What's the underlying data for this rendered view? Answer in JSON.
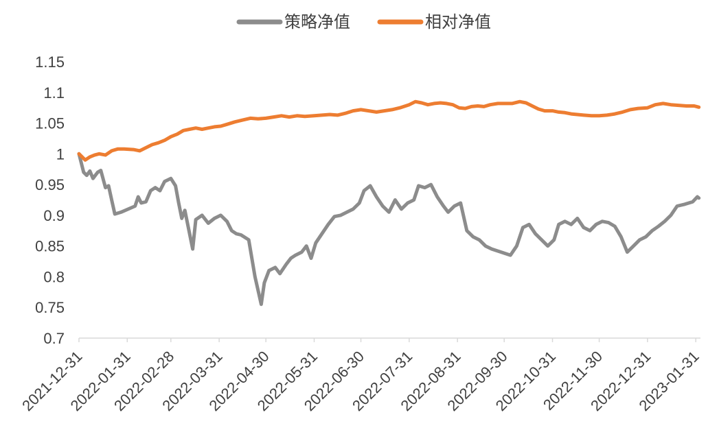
{
  "chart_data": {
    "type": "line",
    "title": "",
    "xlabel": "",
    "ylabel": "",
    "ylim": [
      0.7,
      1.15
    ],
    "yticks": [
      "1.15",
      "1.1",
      "1.05",
      "1",
      "0.95",
      "0.9",
      "0.85",
      "0.8",
      "0.75",
      "0.7"
    ],
    "xticks": [
      "2021-12-31",
      "2022-01-31",
      "2022-02-28",
      "2022-03-31",
      "2022-04-30",
      "2022-05-31",
      "2022-06-30",
      "2022-07-31",
      "2022-08-31",
      "2022-09-30",
      "2022-10-31",
      "2022-11-30",
      "2022-12-31",
      "2023-01-31"
    ],
    "legend_position": "top-center",
    "grid": false,
    "series": [
      {
        "name": "策略净值",
        "color": "#8c8c8c",
        "points": [
          [
            "2021-12-31",
            1.0
          ],
          [
            "2022-01-03",
            0.97
          ],
          [
            "2022-01-05",
            0.965
          ],
          [
            "2022-01-07",
            0.972
          ],
          [
            "2022-01-09",
            0.96
          ],
          [
            "2022-01-12",
            0.97
          ],
          [
            "2022-01-14",
            0.973
          ],
          [
            "2022-01-17",
            0.945
          ],
          [
            "2022-01-19",
            0.948
          ],
          [
            "2022-01-21",
            0.925
          ],
          [
            "2022-01-23",
            0.902
          ],
          [
            "2022-01-27",
            0.905
          ],
          [
            "2022-02-05",
            0.915
          ],
          [
            "2022-02-07",
            0.93
          ],
          [
            "2022-02-09",
            0.92
          ],
          [
            "2022-02-12",
            0.922
          ],
          [
            "2022-02-15",
            0.94
          ],
          [
            "2022-02-18",
            0.945
          ],
          [
            "2022-02-21",
            0.94
          ],
          [
            "2022-02-24",
            0.955
          ],
          [
            "2022-02-28",
            0.96
          ],
          [
            "2022-03-03",
            0.948
          ],
          [
            "2022-03-05",
            0.92
          ],
          [
            "2022-03-07",
            0.895
          ],
          [
            "2022-03-09",
            0.908
          ],
          [
            "2022-03-14",
            0.845
          ],
          [
            "2022-03-16",
            0.893
          ],
          [
            "2022-03-20",
            0.9
          ],
          [
            "2022-03-24",
            0.887
          ],
          [
            "2022-03-28",
            0.895
          ],
          [
            "2022-04-01",
            0.9
          ],
          [
            "2022-04-05",
            0.89
          ],
          [
            "2022-04-08",
            0.875
          ],
          [
            "2022-04-11",
            0.87
          ],
          [
            "2022-04-14",
            0.868
          ],
          [
            "2022-04-19",
            0.86
          ],
          [
            "2022-04-23",
            0.8
          ],
          [
            "2022-04-27",
            0.755
          ],
          [
            "2022-04-29",
            0.79
          ],
          [
            "2022-05-02",
            0.81
          ],
          [
            "2022-05-06",
            0.815
          ],
          [
            "2022-05-09",
            0.805
          ],
          [
            "2022-05-13",
            0.82
          ],
          [
            "2022-05-16",
            0.83
          ],
          [
            "2022-05-19",
            0.835
          ],
          [
            "2022-05-23",
            0.84
          ],
          [
            "2022-05-26",
            0.85
          ],
          [
            "2022-05-29",
            0.83
          ],
          [
            "2022-06-01",
            0.855
          ],
          [
            "2022-06-05",
            0.87
          ],
          [
            "2022-06-09",
            0.885
          ],
          [
            "2022-06-13",
            0.898
          ],
          [
            "2022-06-17",
            0.9
          ],
          [
            "2022-06-21",
            0.905
          ],
          [
            "2022-06-25",
            0.91
          ],
          [
            "2022-06-29",
            0.92
          ],
          [
            "2022-07-02",
            0.94
          ],
          [
            "2022-07-06",
            0.948
          ],
          [
            "2022-07-10",
            0.93
          ],
          [
            "2022-07-14",
            0.915
          ],
          [
            "2022-07-18",
            0.905
          ],
          [
            "2022-07-22",
            0.925
          ],
          [
            "2022-07-26",
            0.91
          ],
          [
            "2022-07-30",
            0.92
          ],
          [
            "2022-08-03",
            0.925
          ],
          [
            "2022-08-06",
            0.948
          ],
          [
            "2022-08-10",
            0.945
          ],
          [
            "2022-08-14",
            0.95
          ],
          [
            "2022-08-18",
            0.93
          ],
          [
            "2022-08-22",
            0.915
          ],
          [
            "2022-08-25",
            0.905
          ],
          [
            "2022-08-29",
            0.915
          ],
          [
            "2022-09-02",
            0.92
          ],
          [
            "2022-09-06",
            0.875
          ],
          [
            "2022-09-10",
            0.865
          ],
          [
            "2022-09-14",
            0.86
          ],
          [
            "2022-09-18",
            0.85
          ],
          [
            "2022-09-22",
            0.845
          ],
          [
            "2022-09-28",
            0.84
          ],
          [
            "2022-10-04",
            0.835
          ],
          [
            "2022-10-08",
            0.85
          ],
          [
            "2022-10-12",
            0.88
          ],
          [
            "2022-10-16",
            0.885
          ],
          [
            "2022-10-20",
            0.87
          ],
          [
            "2022-10-24",
            0.86
          ],
          [
            "2022-10-28",
            0.85
          ],
          [
            "2022-11-01",
            0.86
          ],
          [
            "2022-11-04",
            0.885
          ],
          [
            "2022-11-08",
            0.89
          ],
          [
            "2022-11-12",
            0.885
          ],
          [
            "2022-11-16",
            0.895
          ],
          [
            "2022-11-20",
            0.88
          ],
          [
            "2022-11-24",
            0.875
          ],
          [
            "2022-11-28",
            0.885
          ],
          [
            "2022-12-02",
            0.89
          ],
          [
            "2022-12-06",
            0.888
          ],
          [
            "2022-12-10",
            0.882
          ],
          [
            "2022-12-14",
            0.865
          ],
          [
            "2022-12-18",
            0.84
          ],
          [
            "2022-12-22",
            0.85
          ],
          [
            "2022-12-26",
            0.86
          ],
          [
            "2022-12-30",
            0.865
          ],
          [
            "2023-01-03",
            0.875
          ],
          [
            "2023-01-07",
            0.882
          ],
          [
            "2023-01-11",
            0.89
          ],
          [
            "2023-01-15",
            0.9
          ],
          [
            "2023-01-19",
            0.915
          ],
          [
            "2023-01-24",
            0.918
          ],
          [
            "2023-01-29",
            0.922
          ],
          [
            "2023-02-01",
            0.93
          ],
          [
            "2023-02-02",
            0.928
          ]
        ]
      },
      {
        "name": "相对净值",
        "color": "#ed7d31",
        "points": [
          [
            "2021-12-31",
            1.0
          ],
          [
            "2022-01-04",
            0.99
          ],
          [
            "2022-01-07",
            0.995
          ],
          [
            "2022-01-10",
            0.998
          ],
          [
            "2022-01-13",
            1.0
          ],
          [
            "2022-01-17",
            0.998
          ],
          [
            "2022-01-21",
            1.005
          ],
          [
            "2022-01-25",
            1.008
          ],
          [
            "2022-01-29",
            1.008
          ],
          [
            "2022-02-04",
            1.007
          ],
          [
            "2022-02-08",
            1.005
          ],
          [
            "2022-02-12",
            1.01
          ],
          [
            "2022-02-16",
            1.015
          ],
          [
            "2022-02-20",
            1.018
          ],
          [
            "2022-02-24",
            1.022
          ],
          [
            "2022-02-28",
            1.028
          ],
          [
            "2022-03-04",
            1.032
          ],
          [
            "2022-03-08",
            1.038
          ],
          [
            "2022-03-12",
            1.04
          ],
          [
            "2022-03-16",
            1.042
          ],
          [
            "2022-03-20",
            1.04
          ],
          [
            "2022-03-24",
            1.042
          ],
          [
            "2022-03-28",
            1.044
          ],
          [
            "2022-04-01",
            1.045
          ],
          [
            "2022-04-05",
            1.048
          ],
          [
            "2022-04-10",
            1.052
          ],
          [
            "2022-04-15",
            1.055
          ],
          [
            "2022-04-20",
            1.058
          ],
          [
            "2022-04-25",
            1.057
          ],
          [
            "2022-04-30",
            1.058
          ],
          [
            "2022-05-05",
            1.06
          ],
          [
            "2022-05-10",
            1.062
          ],
          [
            "2022-05-15",
            1.06
          ],
          [
            "2022-05-20",
            1.062
          ],
          [
            "2022-05-25",
            1.061
          ],
          [
            "2022-05-31",
            1.062
          ],
          [
            "2022-06-05",
            1.063
          ],
          [
            "2022-06-10",
            1.064
          ],
          [
            "2022-06-15",
            1.063
          ],
          [
            "2022-06-20",
            1.066
          ],
          [
            "2022-06-25",
            1.07
          ],
          [
            "2022-06-30",
            1.072
          ],
          [
            "2022-07-05",
            1.07
          ],
          [
            "2022-07-10",
            1.068
          ],
          [
            "2022-07-15",
            1.07
          ],
          [
            "2022-07-20",
            1.072
          ],
          [
            "2022-07-25",
            1.075
          ],
          [
            "2022-07-31",
            1.08
          ],
          [
            "2022-08-04",
            1.085
          ],
          [
            "2022-08-08",
            1.083
          ],
          [
            "2022-08-12",
            1.08
          ],
          [
            "2022-08-16",
            1.082
          ],
          [
            "2022-08-20",
            1.083
          ],
          [
            "2022-08-24",
            1.082
          ],
          [
            "2022-08-28",
            1.08
          ],
          [
            "2022-09-01",
            1.075
          ],
          [
            "2022-09-05",
            1.074
          ],
          [
            "2022-09-09",
            1.077
          ],
          [
            "2022-09-13",
            1.078
          ],
          [
            "2022-09-17",
            1.077
          ],
          [
            "2022-09-21",
            1.08
          ],
          [
            "2022-09-26",
            1.082
          ],
          [
            "2022-09-30",
            1.082
          ],
          [
            "2022-10-05",
            1.082
          ],
          [
            "2022-10-10",
            1.085
          ],
          [
            "2022-10-14",
            1.083
          ],
          [
            "2022-10-18",
            1.078
          ],
          [
            "2022-10-22",
            1.073
          ],
          [
            "2022-10-26",
            1.07
          ],
          [
            "2022-10-31",
            1.07
          ],
          [
            "2022-11-04",
            1.068
          ],
          [
            "2022-11-08",
            1.067
          ],
          [
            "2022-11-12",
            1.065
          ],
          [
            "2022-11-16",
            1.064
          ],
          [
            "2022-11-20",
            1.063
          ],
          [
            "2022-11-25",
            1.062
          ],
          [
            "2022-11-30",
            1.062
          ],
          [
            "2022-12-05",
            1.063
          ],
          [
            "2022-12-10",
            1.065
          ],
          [
            "2022-12-15",
            1.068
          ],
          [
            "2022-12-20",
            1.072
          ],
          [
            "2022-12-25",
            1.074
          ],
          [
            "2022-12-31",
            1.075
          ],
          [
            "2023-01-05",
            1.08
          ],
          [
            "2023-01-10",
            1.082
          ],
          [
            "2023-01-15",
            1.08
          ],
          [
            "2023-01-20",
            1.079
          ],
          [
            "2023-01-25",
            1.078
          ],
          [
            "2023-01-30",
            1.078
          ],
          [
            "2023-02-02",
            1.076
          ]
        ]
      }
    ]
  }
}
